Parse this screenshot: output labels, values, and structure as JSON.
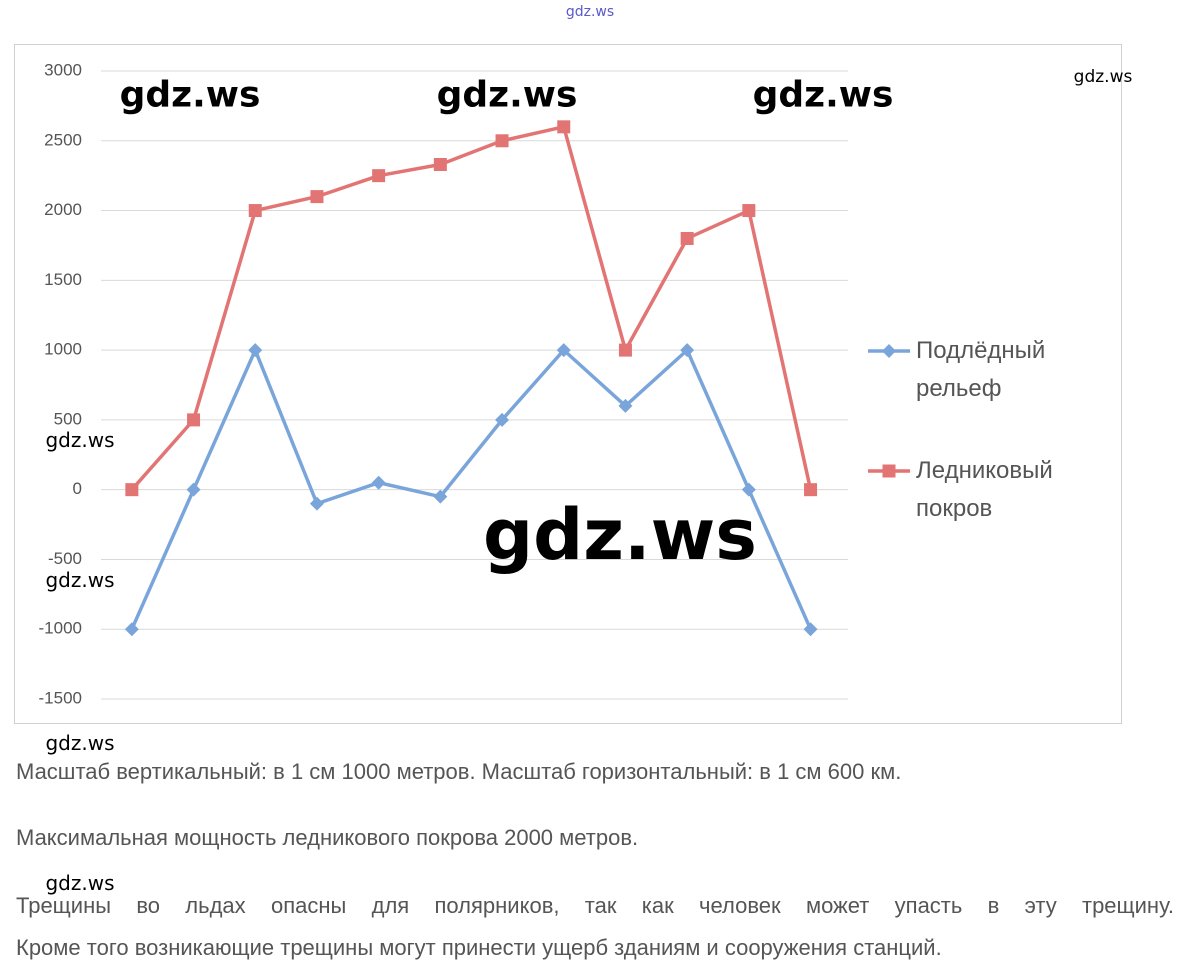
{
  "chart_data": {
    "type": "line",
    "categories": [
      null,
      null,
      null,
      null,
      null,
      null,
      null,
      null,
      null,
      null,
      null,
      null
    ],
    "series": [
      {
        "name": "Подлёдный рельеф",
        "color": "#7aa5db",
        "marker": "diamond",
        "values": [
          -1000,
          0,
          1000,
          -100,
          50,
          -50,
          500,
          1000,
          600,
          1000,
          0,
          -1000
        ]
      },
      {
        "name": "Ледниковый покров",
        "color": "#e37474",
        "marker": "square",
        "values": [
          0,
          500,
          2000,
          2100,
          2250,
          2330,
          2500,
          2600,
          1000,
          1800,
          2000,
          0
        ]
      }
    ],
    "ylim": [
      -1500,
      3000
    ],
    "yticks": [
      -1500,
      -1000,
      -500,
      0,
      500,
      1000,
      1500,
      2000,
      2500,
      3000
    ],
    "grid": true,
    "legend": "right"
  },
  "text": [
    "Масштаб вертикальный: в 1 см 1000 метров. Масштаб горизонтальный: в 1 см 600 км.",
    "Максимальная мощность ледникового покрова 2000 метров.",
    "Трещины во льдах опасны для полярников, так как человек может упасть в эту трещину.",
    "Кроме того возникающие трещины могут принести ущерб зданиям и сооружения станций."
  ],
  "watermarks": [
    "gdz.ws",
    "gdz.ws",
    "gdz.ws",
    "gdz.ws",
    "gdz.ws",
    "gdz.ws",
    "gdz.ws",
    "gdz.ws",
    "gdz.ws",
    "gdz.ws"
  ]
}
